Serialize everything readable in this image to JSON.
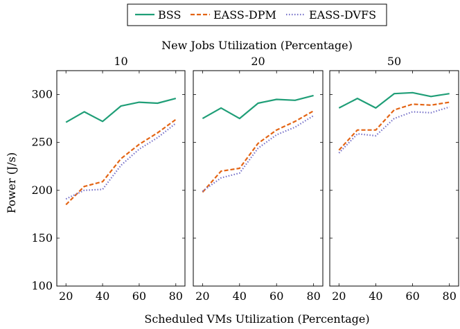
{
  "chart_data": {
    "type": "line",
    "title": "New Jobs Utilization (Percentage)",
    "xlabel": "Scheduled VMs Utilization (Percentage)",
    "ylabel": "Power (J/s)",
    "legend_position": "top-center",
    "grid": false,
    "ylim": [
      100,
      325
    ],
    "xlim": [
      15,
      85
    ],
    "x": [
      20,
      30,
      40,
      50,
      60,
      70,
      80
    ],
    "x_ticks": [
      "20",
      "40",
      "60",
      "80"
    ],
    "y_ticks": [
      "100",
      "150",
      "200",
      "250",
      "300"
    ],
    "series_styles": [
      {
        "name": "BSS",
        "color": "#1f9e77",
        "dash": "solid"
      },
      {
        "name": "EASS-DPM",
        "color": "#e36414",
        "dash": "dashed"
      },
      {
        "name": "EASS-DVFS",
        "color": "#7570c8",
        "dash": "dotted"
      }
    ],
    "panels": [
      {
        "label": "10",
        "series": [
          {
            "name": "BSS",
            "values": [
              271,
              282,
              272,
              288,
              292,
              291,
              296
            ]
          },
          {
            "name": "EASS-DPM",
            "values": [
              185,
              204,
              209,
              233,
              248,
              260,
              274
            ]
          },
          {
            "name": "EASS-DVFS",
            "values": [
              191,
              200,
              201,
              226,
              243,
              255,
              270
            ]
          }
        ]
      },
      {
        "label": "20",
        "series": [
          {
            "name": "BSS",
            "values": [
              275,
              286,
              275,
              291,
              295,
              294,
              299
            ]
          },
          {
            "name": "EASS-DPM",
            "values": [
              198,
              220,
              223,
              249,
              263,
              272,
              283
            ]
          },
          {
            "name": "EASS-DVFS",
            "values": [
              199,
              213,
              218,
              244,
              258,
              266,
              278
            ]
          }
        ]
      },
      {
        "label": "50",
        "series": [
          {
            "name": "BSS",
            "values": [
              286,
              296,
              286,
              301,
              302,
              298,
              301
            ]
          },
          {
            "name": "EASS-DPM",
            "values": [
              242,
              263,
              263,
              284,
              290,
              289,
              292
            ]
          },
          {
            "name": "EASS-DVFS",
            "values": [
              239,
              259,
              257,
              275,
              282,
              281,
              287
            ]
          }
        ]
      }
    ]
  }
}
